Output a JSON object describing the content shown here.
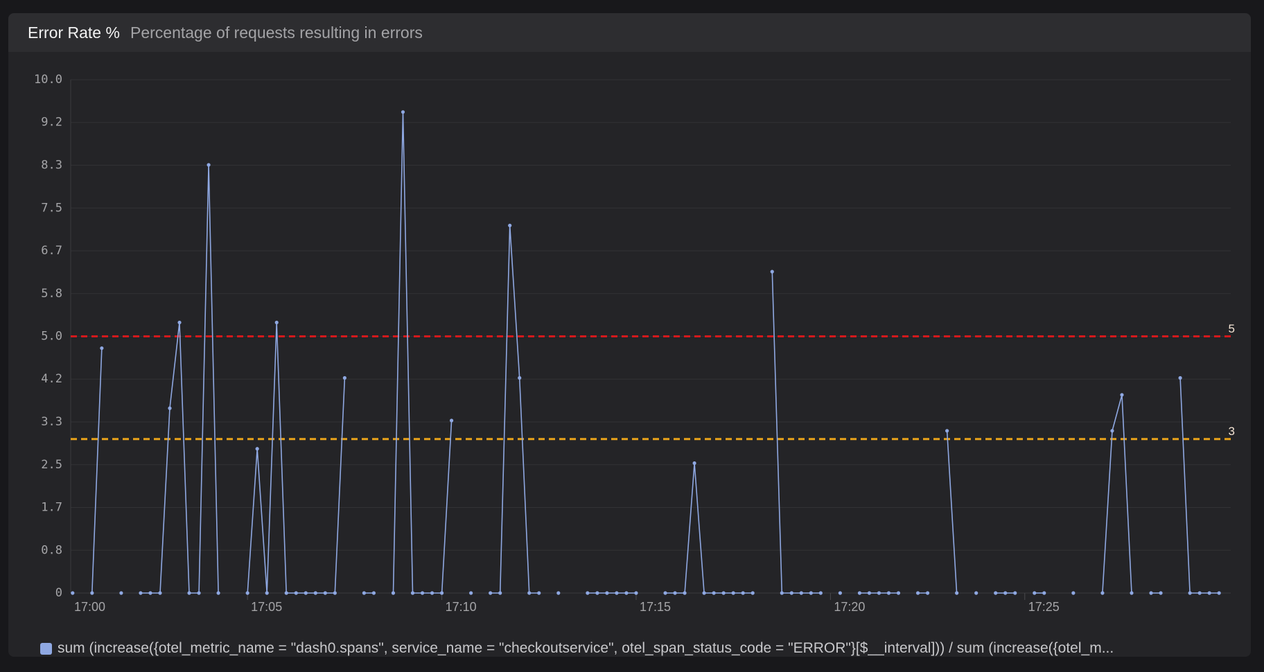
{
  "chart_data": {
    "type": "line",
    "title": "Error Rate %",
    "subtitle": "Percentage of requests resulting in errors",
    "x": [
      0.5,
      0.75,
      1,
      1.25,
      1.5,
      1.75,
      2,
      2.25,
      2.5,
      2.75,
      3,
      3.25,
      3.5,
      3.75,
      4,
      4.25,
      4.5,
      4.75,
      5,
      5.25,
      5.5,
      5.75,
      6,
      6.25,
      6.5,
      6.75,
      7,
      7.25,
      7.5,
      7.75,
      8,
      8.25,
      8.5,
      8.75,
      9,
      9.25,
      9.5,
      9.75,
      10,
      10.25,
      10.5,
      10.75,
      11,
      11.25,
      11.5,
      11.75,
      12,
      12.25,
      12.5,
      12.75,
      13,
      13.25,
      13.5,
      13.75,
      14,
      14.25,
      14.5,
      14.75,
      15,
      15.25,
      15.5,
      15.75,
      16,
      16.25,
      16.5,
      16.75,
      17,
      17.25,
      17.5,
      17.75,
      18,
      18.25,
      18.5,
      18.75,
      19,
      19.25,
      19.5,
      19.75,
      20,
      20.25,
      20.5,
      20.75,
      21,
      21.25,
      21.5,
      21.75,
      22,
      22.25,
      22.5,
      22.75,
      23,
      23.25,
      23.5,
      23.75,
      24,
      24.25,
      24.5,
      24.75,
      25,
      25.25,
      25.5,
      25.75,
      26,
      26.25,
      26.5,
      26.75,
      27,
      27.25,
      27.5,
      27.75,
      28,
      28.25,
      28.5,
      28.75,
      29,
      29.25,
      29.5,
      29.75,
      30
    ],
    "series": [
      {
        "name": "sum (increase({otel_metric_name = \"dash0.spans\", service_name = \"checkoutservice\", otel_span_status_code = \"ERROR\"}[$__interval])) / sum (increase({otel_m...",
        "color": "#8fa8e2",
        "values": [
          0,
          null,
          0,
          4.77,
          null,
          0,
          null,
          0,
          0,
          0,
          3.6,
          5.27,
          0,
          0,
          8.34,
          0,
          null,
          null,
          0,
          2.81,
          0,
          5.27,
          0,
          0,
          0,
          0,
          0,
          0,
          4.19,
          null,
          0,
          0,
          null,
          0,
          9.37,
          0,
          0,
          0,
          0,
          3.36,
          null,
          0,
          null,
          0,
          0,
          7.16,
          4.19,
          0,
          0,
          null,
          0,
          null,
          null,
          0,
          0,
          0,
          0,
          0,
          0,
          null,
          null,
          0,
          0,
          0,
          2.53,
          0,
          0,
          0,
          0,
          0,
          0,
          null,
          6.26,
          0,
          0,
          0,
          0,
          0,
          null,
          0,
          null,
          0,
          0,
          0,
          0,
          0,
          null,
          0,
          0,
          null,
          3.16,
          0,
          null,
          0,
          null,
          0,
          0,
          0,
          null,
          0,
          0,
          null,
          null,
          0,
          null,
          null,
          0,
          3.16,
          3.86,
          0,
          null,
          0,
          0,
          null,
          4.19,
          0,
          0,
          0,
          0
        ]
      }
    ],
    "thresholds": [
      {
        "value": 5,
        "color": "#d3191c"
      },
      {
        "value": 3,
        "color": "#e9a31a"
      }
    ],
    "xlim": [
      0.45,
      30.3
    ],
    "xticks": [
      {
        "value": 0,
        "label": "17:00"
      },
      {
        "value": 5,
        "label": "17:05"
      },
      {
        "value": 10,
        "label": "17:10"
      },
      {
        "value": 15,
        "label": "17:15"
      },
      {
        "value": 20,
        "label": "17:20"
      },
      {
        "value": 25,
        "label": "17:25"
      }
    ],
    "ylim": [
      0,
      10
    ],
    "yticks": [
      0,
      {
        "value": 0.833,
        "label": "0.8"
      },
      {
        "value": 1.667,
        "label": "1.7"
      },
      2.5,
      {
        "value": 3.333,
        "label": "3.3"
      },
      {
        "value": 4.167,
        "label": "4.2"
      },
      {
        "value": 5,
        "label": "5.0"
      },
      {
        "value": 5.833,
        "label": "5.8"
      },
      {
        "value": 6.667,
        "label": "6.7"
      },
      7.5,
      {
        "value": 8.333,
        "label": "8.3"
      },
      {
        "value": 9.167,
        "label": "9.2"
      },
      {
        "value": 10,
        "label": "10.0"
      }
    ],
    "grid": true
  }
}
